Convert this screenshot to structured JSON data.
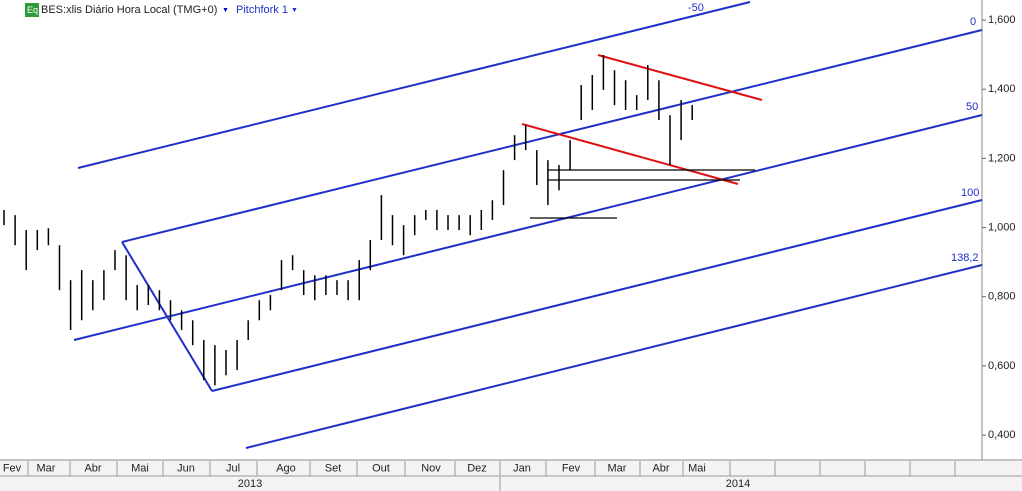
{
  "header": {
    "badge": "Eq",
    "symbol": "BES:xlis Diário Hora Local (TMG+0)",
    "study": "Pitchfork 1"
  },
  "chart_data": {
    "type": "ohlc",
    "color": "#000000",
    "high": [
      1.051,
      1.036,
      0.993,
      0.993,
      0.998,
      0.949,
      0.848,
      0.877,
      0.848,
      0.877,
      0.935,
      0.92,
      0.834,
      0.834,
      0.819,
      0.79,
      0.761,
      0.732,
      0.675,
      0.66,
      0.646,
      0.675,
      0.732,
      0.79,
      0.805,
      0.906,
      0.92,
      0.877,
      0.862,
      0.862,
      0.848,
      0.848,
      0.906,
      0.964,
      1.094,
      1.036,
      1.007,
      1.036,
      1.051,
      1.051,
      1.036,
      1.036,
      1.036,
      1.051,
      1.079,
      1.166,
      1.267,
      1.296,
      1.224,
      1.195,
      1.181,
      1.253,
      1.412,
      1.441,
      1.499,
      1.455,
      1.426,
      1.383,
      1.47,
      1.426,
      1.325,
      1.369,
      1.354
    ],
    "low": [
      1.007,
      0.949,
      0.877,
      0.935,
      0.949,
      0.819,
      0.704,
      0.732,
      0.761,
      0.79,
      0.877,
      0.79,
      0.761,
      0.776,
      0.761,
      0.732,
      0.704,
      0.66,
      0.559,
      0.544,
      0.573,
      0.588,
      0.675,
      0.732,
      0.761,
      0.819,
      0.877,
      0.805,
      0.79,
      0.805,
      0.805,
      0.79,
      0.79,
      0.877,
      0.964,
      0.949,
      0.92,
      0.978,
      1.022,
      0.993,
      0.993,
      0.993,
      0.978,
      0.993,
      1.022,
      1.065,
      1.195,
      1.224,
      1.123,
      1.065,
      1.108,
      1.166,
      1.311,
      1.34,
      1.398,
      1.354,
      1.34,
      1.34,
      1.369,
      1.311,
      1.181,
      1.253,
      1.311
    ],
    "ylim": [
      0.328,
      1.658
    ],
    "yticks": [
      {
        "value": 1.6,
        "label": "1,600"
      },
      {
        "value": 1.4,
        "label": "1,400"
      },
      {
        "value": 1.2,
        "label": "1,200"
      },
      {
        "value": 1.0,
        "label": "1,000"
      },
      {
        "value": 0.8,
        "label": "0,800"
      },
      {
        "value": 0.6,
        "label": "0,600"
      },
      {
        "value": 0.4,
        "label": "0,400"
      }
    ],
    "months": [
      "Fev",
      "Mar",
      "Abr",
      "Mai",
      "Jun",
      "Jul",
      "Ago",
      "Set",
      "Out",
      "Nov",
      "Dez",
      "Jan",
      "Fev",
      "Mar",
      "Abr",
      "Mai"
    ],
    "years": [
      "2013",
      "2014"
    ],
    "pitchfork_levels": [
      "-50",
      "0",
      "50",
      "100",
      "138,2"
    ]
  }
}
